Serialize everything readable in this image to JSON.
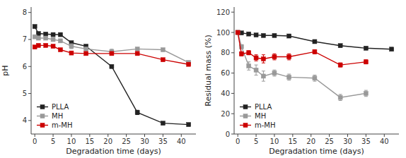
{
  "chart_data": [
    {
      "type": "line",
      "xlabel": "Degradation time (days)",
      "ylabel": "pH",
      "x": [
        0,
        1,
        3,
        5,
        7,
        10,
        14,
        21,
        28,
        35,
        42
      ],
      "xlim": [
        -1,
        44
      ],
      "xticks": [
        0,
        5,
        10,
        15,
        20,
        25,
        30,
        35,
        40
      ],
      "ylim": [
        3.5,
        8.2
      ],
      "yticks": [
        4,
        5,
        6,
        7,
        8
      ],
      "grid": false,
      "legend": "lower left",
      "marker": "square",
      "series": [
        {
          "name": "PLLA",
          "color": "#222222",
          "values": [
            7.48,
            7.22,
            7.2,
            7.18,
            7.18,
            6.88,
            6.75,
            6.0,
            4.3,
            3.9,
            3.85
          ],
          "yerr": [
            0.04,
            0.03,
            0.03,
            0.03,
            0.03,
            0.04,
            0.04,
            0.04,
            0.08,
            0.04,
            0.04
          ]
        },
        {
          "name": "MH",
          "color": "#999999",
          "values": [
            7.1,
            7.05,
            7.05,
            7.0,
            6.95,
            6.75,
            6.65,
            6.55,
            6.65,
            6.62,
            6.15
          ],
          "yerr": [
            0.04,
            0.04,
            0.04,
            0.04,
            0.04,
            0.09,
            0.04,
            0.09,
            0.04,
            0.04,
            0.04
          ]
        },
        {
          "name": "m-MH",
          "color": "#cc0000",
          "values": [
            6.72,
            6.78,
            6.78,
            6.75,
            6.62,
            6.5,
            6.48,
            6.48,
            6.48,
            6.25,
            6.08
          ],
          "yerr": [
            0.04,
            0.04,
            0.04,
            0.04,
            0.04,
            0.04,
            0.04,
            0.04,
            0.04,
            0.04,
            0.04
          ]
        }
      ]
    },
    {
      "type": "line",
      "xlabel": "Degradation time (days)",
      "ylabel": "Residual mass (%)",
      "x": [
        0,
        1,
        3,
        5,
        7,
        10,
        14,
        21,
        28,
        35,
        42
      ],
      "xlim": [
        -1,
        44
      ],
      "xticks": [
        0,
        5,
        10,
        15,
        20,
        25,
        30,
        35,
        40
      ],
      "ylim": [
        0,
        125
      ],
      "yticks": [
        0,
        20,
        40,
        60,
        80,
        100,
        120
      ],
      "grid": false,
      "legend": "lower left",
      "marker": "square",
      "series": [
        {
          "name": "PLLA",
          "color": "#222222",
          "values": [
            100,
            99.5,
            98.5,
            97.5,
            97.0,
            97.0,
            96.5,
            91.0,
            87.0,
            84.5,
            83.5
          ],
          "yerr": [
            0.5,
            0.5,
            0.5,
            0.5,
            0.5,
            0.5,
            0.5,
            1.0,
            0.5,
            0.5,
            0.5
          ]
        },
        {
          "name": "MH",
          "color": "#999999",
          "values": [
            100,
            86,
            67,
            63,
            57,
            60,
            56,
            55,
            36,
            40,
            null
          ],
          "yerr": [
            1,
            2,
            4,
            5,
            5,
            3,
            3,
            3,
            3,
            3,
            null
          ]
        },
        {
          "name": "m-MH",
          "color": "#cc0000",
          "values": [
            100,
            79,
            80,
            75,
            74,
            76,
            76,
            81,
            68,
            71,
            null
          ],
          "yerr": [
            1,
            2,
            2,
            3,
            4,
            3,
            3,
            2,
            2,
            2,
            null
          ]
        }
      ]
    }
  ]
}
